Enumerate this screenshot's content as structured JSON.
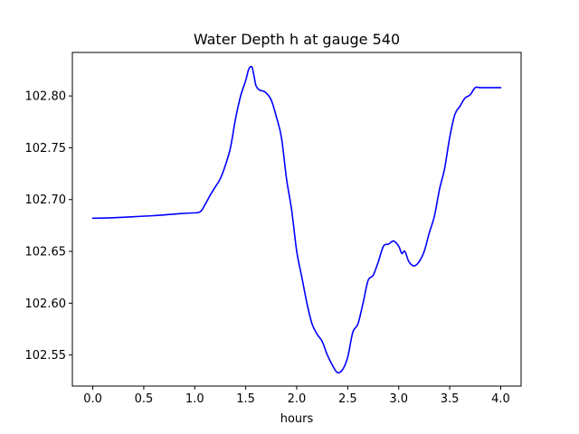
{
  "chart_data": {
    "type": "line",
    "title": "Water Depth h at gauge 540",
    "xlabel": "hours",
    "ylabel": "",
    "xlim": [
      -0.2,
      4.2
    ],
    "ylim": [
      102.52,
      102.842
    ],
    "grid": false,
    "legend": "none",
    "x_ticks": [
      0.0,
      0.5,
      1.0,
      1.5,
      2.0,
      2.5,
      3.0,
      3.5,
      4.0
    ],
    "x_tick_labels": [
      "0.0",
      "0.5",
      "1.0",
      "1.5",
      "2.0",
      "2.5",
      "3.0",
      "3.5",
      "4.0"
    ],
    "y_ticks": [
      102.55,
      102.6,
      102.65,
      102.7,
      102.75,
      102.8
    ],
    "y_tick_labels": [
      "102.55",
      "102.60",
      "102.65",
      "102.70",
      "102.75",
      "102.80"
    ],
    "series": [
      {
        "color": "#0000ff",
        "x": [
          0.0,
          0.2,
          0.4,
          0.6,
          0.8,
          0.95,
          1.05,
          1.1,
          1.15,
          1.2,
          1.25,
          1.3,
          1.35,
          1.4,
          1.45,
          1.5,
          1.53,
          1.56,
          1.58,
          1.6,
          1.63,
          1.66,
          1.7,
          1.75,
          1.8,
          1.85,
          1.9,
          1.95,
          2.0,
          2.05,
          2.1,
          2.15,
          2.2,
          2.25,
          2.3,
          2.35,
          2.4,
          2.45,
          2.5,
          2.55,
          2.6,
          2.65,
          2.7,
          2.75,
          2.8,
          2.85,
          2.9,
          2.95,
          3.0,
          3.03,
          3.06,
          3.1,
          3.15,
          3.2,
          3.25,
          3.3,
          3.35,
          3.4,
          3.45,
          3.5,
          3.55,
          3.6,
          3.65,
          3.7,
          3.75,
          3.8,
          3.85,
          3.9,
          3.95,
          4.0
        ],
        "y": [
          102.682,
          102.6825,
          102.6835,
          102.6845,
          102.686,
          102.687,
          102.688,
          102.695,
          102.704,
          102.712,
          102.72,
          102.733,
          102.75,
          102.778,
          102.8,
          102.815,
          102.826,
          102.828,
          102.82,
          102.81,
          102.806,
          102.805,
          102.803,
          102.796,
          102.78,
          102.76,
          102.72,
          102.69,
          102.65,
          102.625,
          102.6,
          102.58,
          102.57,
          102.563,
          102.55,
          102.54,
          102.533,
          102.536,
          102.548,
          102.572,
          102.58,
          102.6,
          102.622,
          102.627,
          102.64,
          102.655,
          102.657,
          102.66,
          102.655,
          102.648,
          102.65,
          102.64,
          102.636,
          102.64,
          102.65,
          102.668,
          102.684,
          102.71,
          102.73,
          102.76,
          102.782,
          102.79,
          102.798,
          102.801,
          102.808,
          102.808,
          102.808,
          102.808,
          102.808,
          102.808
        ]
      }
    ]
  }
}
